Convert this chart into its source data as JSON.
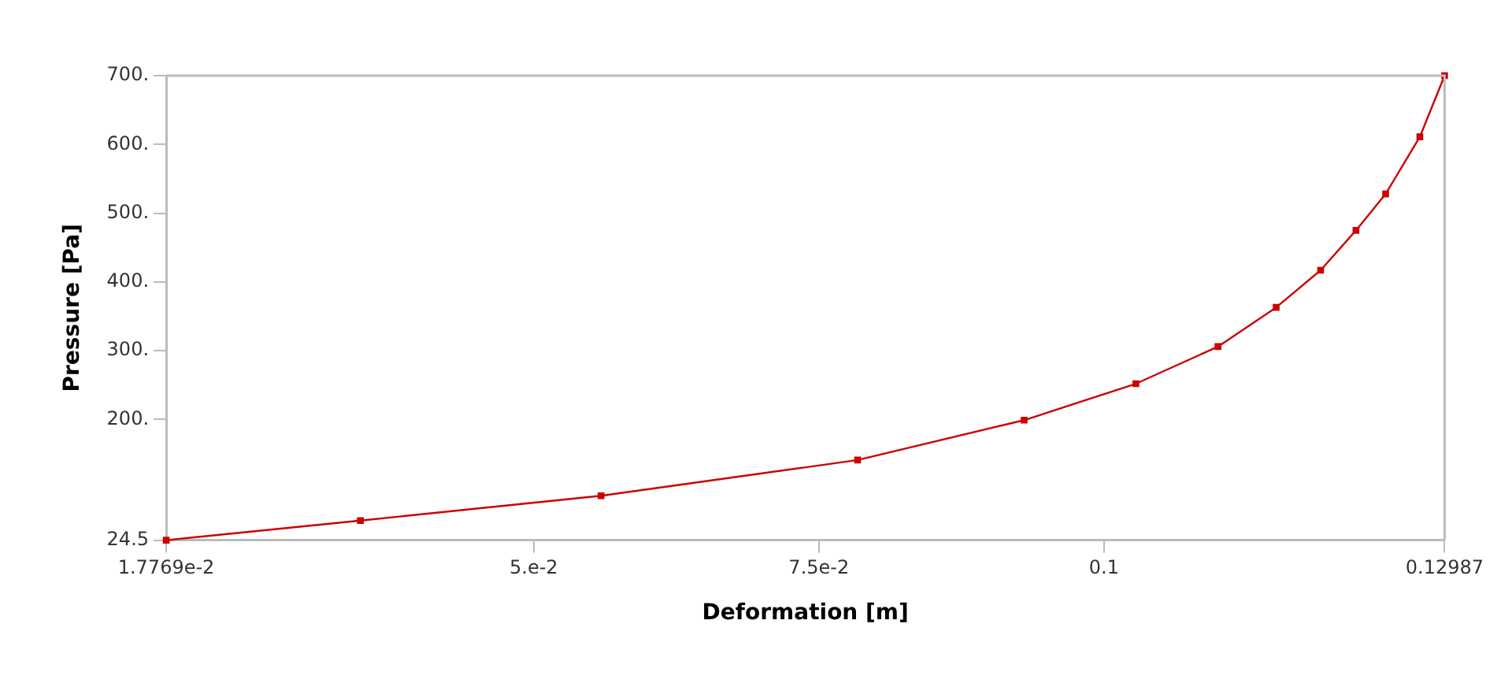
{
  "chart_data": {
    "type": "line",
    "xlabel": "Deformation [m]",
    "ylabel": "Pressure [Pa]",
    "x": [
      0.01777,
      0.0348,
      0.0559,
      0.0784,
      0.093,
      0.1028,
      0.11,
      0.1151,
      0.119,
      0.1221,
      0.1247,
      0.1277,
      0.12987
    ],
    "series": [
      {
        "color": "#cc0000",
        "values": [
          24.5,
          53,
          89,
          141,
          199,
          252,
          306,
          363,
          417,
          475,
          528,
          611,
          700
        ]
      }
    ],
    "xlim": [
      0.017769,
      0.12987
    ],
    "xticks": [
      {
        "value": 0.017769,
        "label": "1.7769e-2"
      },
      {
        "value": 0.05,
        "label": "5.e-2"
      },
      {
        "value": 0.075,
        "label": "7.5e-2"
      },
      0.1,
      0.12987
    ],
    "ylim": [
      24.5,
      700
    ],
    "yticks": [
      24.5,
      {
        "value": 200,
        "label": "200."
      },
      {
        "value": 300,
        "label": "300."
      },
      {
        "value": 400,
        "label": "400."
      },
      {
        "value": 500,
        "label": "500."
      },
      {
        "value": 600,
        "label": "600."
      },
      {
        "value": 700,
        "label": "700."
      }
    ],
    "grid": false,
    "legend": false,
    "marker": "square",
    "line_style": "solid"
  }
}
